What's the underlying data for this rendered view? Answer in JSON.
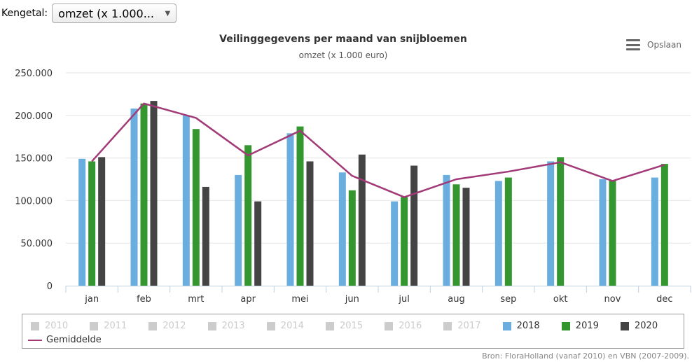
{
  "selector": {
    "label": "Kengetal:",
    "value": "omzet (x 1.000..."
  },
  "export": {
    "label": "Opslaan",
    "icon": "hamburger-menu-icon"
  },
  "source": "Bron: FloraHolland (vanaf 2010) en VBN (2007-2009).",
  "chart_data": {
    "type": "bar",
    "title": "Veilinggegevens per maand van snijbloemen",
    "subtitle": "omzet (x 1.000 euro)",
    "ylim": [
      0,
      250000
    ],
    "yticks": [
      "0",
      "50.000",
      "100.000",
      "150.000",
      "200.000",
      "250.000"
    ],
    "ytick_values": [
      0,
      50000,
      100000,
      150000,
      200000,
      250000
    ],
    "categories": [
      "jan",
      "feb",
      "mrt",
      "apr",
      "mei",
      "jun",
      "jul",
      "aug",
      "sep",
      "okt",
      "nov",
      "dec"
    ],
    "grid": true,
    "legend_position": "bottom",
    "series": [
      {
        "name": "2018",
        "color": "#6aaee0",
        "type": "bar",
        "values": [
          149000,
          208000,
          200000,
          130000,
          179000,
          133000,
          99000,
          130000,
          123000,
          146000,
          125000,
          127000
        ]
      },
      {
        "name": "2019",
        "color": "#33962f",
        "type": "bar",
        "values": [
          146000,
          214000,
          184000,
          165000,
          187000,
          112000,
          104000,
          119000,
          127000,
          151000,
          123000,
          143000
        ]
      },
      {
        "name": "2020",
        "color": "#444444",
        "type": "bar",
        "values": [
          151000,
          217000,
          116000,
          99000,
          146000,
          154000,
          141000,
          115000,
          null,
          null,
          null,
          null
        ]
      },
      {
        "name": "Gemiddelde",
        "color": "#a23a77",
        "type": "line",
        "values": [
          146000,
          214000,
          197000,
          153000,
          182000,
          129000,
          104000,
          125000,
          134000,
          145000,
          123000,
          142000
        ]
      }
    ],
    "hidden_series": [
      {
        "name": "2010"
      },
      {
        "name": "2011"
      },
      {
        "name": "2012"
      },
      {
        "name": "2013"
      },
      {
        "name": "2014"
      },
      {
        "name": "2015"
      },
      {
        "name": "2016"
      },
      {
        "name": "2017"
      }
    ]
  }
}
